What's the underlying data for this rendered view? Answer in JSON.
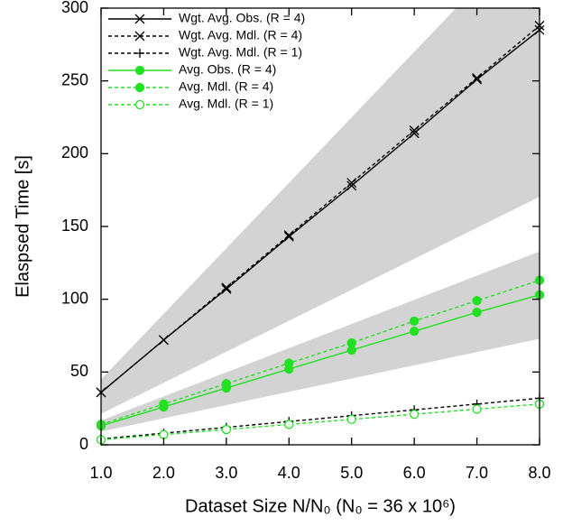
{
  "chart_data": {
    "type": "line",
    "xlabel": "Dataset Size N/N₀ (N₀ = 36 x 10⁶)",
    "ylabel": "Elaspsed Time [s]",
    "x": [
      1,
      2,
      3,
      4,
      5,
      6,
      7,
      8
    ],
    "xlim": [
      1,
      8
    ],
    "xticks": [
      {
        "value": 1,
        "label": "1.0"
      },
      {
        "value": 2,
        "label": "2.0"
      },
      {
        "value": 3,
        "label": "3.0"
      },
      {
        "value": 4,
        "label": "4.0"
      },
      {
        "value": 5,
        "label": "5.0"
      },
      {
        "value": 6,
        "label": "6.0"
      },
      {
        "value": 7,
        "label": "7.0"
      },
      {
        "value": 8,
        "label": "8.0"
      }
    ],
    "ylim": [
      0,
      300
    ],
    "yticks": [
      0,
      50,
      100,
      150,
      200,
      250,
      300
    ],
    "legend": "upper left",
    "bands": [
      {
        "color": "#d3d3d3",
        "lower": [
          21.3,
          42.6,
          63.9,
          85.2,
          106.5,
          127.8,
          149.1,
          170.4
        ],
        "upper": [
          45,
          90,
          135,
          180,
          225,
          270,
          315,
          360
        ]
      },
      {
        "color": "#d3d3d3",
        "lower": [
          9.1,
          18.2,
          27.3,
          36.4,
          45.5,
          54.6,
          63.7,
          72.8
        ],
        "upper": [
          16.6,
          33.2,
          49.8,
          66.4,
          83,
          99.6,
          116.2,
          132.8
        ]
      }
    ],
    "series": [
      {
        "name": "Wgt. Avg. Obs. (R = 4)",
        "color": "#000000",
        "dash": false,
        "marker": "x",
        "values": [
          36,
          72,
          107,
          143,
          178,
          214,
          251,
          285
        ]
      },
      {
        "name": "Wgt. Avg. Mdl. (R = 4)",
        "color": "#000000",
        "dash": true,
        "marker": "x",
        "values": [
          36,
          72,
          108,
          144,
          180,
          216,
          252,
          288
        ]
      },
      {
        "name": "Wgt. Avg. Mdl. (R = 1)",
        "color": "#000000",
        "dash": true,
        "marker": "plus",
        "values": [
          4,
          8,
          12,
          16,
          20,
          24,
          28,
          32
        ]
      },
      {
        "name": "Avg. Obs. (R = 4)",
        "color": "#22e022",
        "dash": false,
        "marker": "dot",
        "values": [
          13,
          26,
          39,
          52,
          65,
          78,
          91,
          103
        ]
      },
      {
        "name": "Avg. Mdl. (R = 4)",
        "color": "#22e022",
        "dash": true,
        "marker": "dot",
        "values": [
          14,
          28,
          42,
          56,
          70,
          85,
          99,
          113
        ]
      },
      {
        "name": "Avg. Mdl. (R = 1)",
        "color": "#22e022",
        "dash": true,
        "marker": "circle",
        "values": [
          3.5,
          7,
          10.5,
          14,
          17.5,
          21,
          24.5,
          28
        ]
      }
    ]
  }
}
